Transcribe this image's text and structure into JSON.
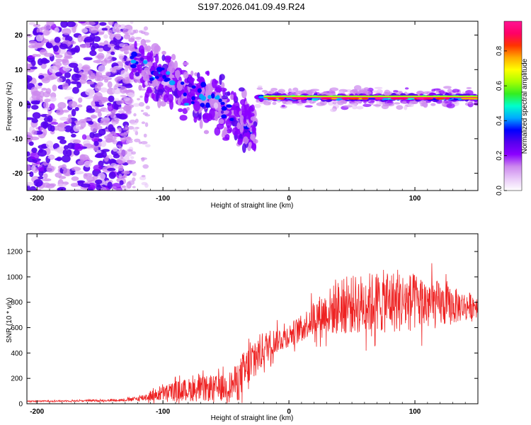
{
  "title": "S197.2026.041.09.49.R24",
  "chart_data": [
    {
      "type": "heatmap",
      "name": "spectrogram",
      "xlabel": "Height of straight line (km)",
      "ylabel": "Frequency (Hz)",
      "xlim": [
        -208,
        150
      ],
      "ylim": [
        -25,
        24
      ],
      "xticks": [
        -200,
        -100,
        0,
        100
      ],
      "yticks": [
        -20,
        -10,
        0,
        10,
        20
      ],
      "colorbar": {
        "label": "Normalized spectral amplitude",
        "range": [
          0,
          0.97
        ],
        "ticks": [
          "0.0",
          "0.2",
          "0.4",
          "0.6",
          "0.8"
        ],
        "tick_values": [
          0,
          0.2,
          0.4,
          0.6,
          0.8
        ],
        "colors": [
          "#ffffff",
          "#e8c8f8",
          "#cc88ee",
          "#8b00ff",
          "#5500ee",
          "#0000ff",
          "#00aaff",
          "#00ffcc",
          "#33ee22",
          "#aaff00",
          "#ffff00",
          "#ffaa00",
          "#ff3300",
          "#ff0066",
          "#ff1493"
        ]
      },
      "features": [
        {
          "name": "noise-region",
          "x_range": [
            -208,
            -125
          ],
          "freq_range": [
            -25,
            24
          ],
          "amplitude": 0.05
        },
        {
          "name": "descending-track",
          "x_start": -125,
          "x_end": -28,
          "freq_start": 12,
          "freq_end": -6,
          "amplitude": 0.25
        },
        {
          "name": "steady-carrier",
          "x_start": -25,
          "x_end": 150,
          "freq_start": 1.8,
          "freq_end": 2.0,
          "amplitude": 0.95
        }
      ]
    },
    {
      "type": "line",
      "name": "snr",
      "xlabel": "Height of straight line (km)",
      "ylabel": "SNR (10 * v/v)",
      "xlim": [
        -208,
        150
      ],
      "ylim": [
        0,
        1340
      ],
      "xticks": [
        -200,
        -100,
        0,
        100
      ],
      "yticks": [
        0,
        200,
        400,
        600,
        800,
        1000,
        1200
      ],
      "series": [
        {
          "name": "SNR",
          "color": "#ee2222",
          "x": [
            -208,
            -180,
            -150,
            -130,
            -120,
            -110,
            -100,
            -90,
            -80,
            -70,
            -60,
            -50,
            -45,
            -40,
            -35,
            -30,
            -25,
            -20,
            -15,
            -10,
            -5,
            0,
            5,
            10,
            15,
            20,
            25,
            30,
            40,
            50,
            60,
            70,
            80,
            90,
            100,
            110,
            120,
            130,
            140,
            150
          ],
          "values": [
            20,
            22,
            25,
            30,
            40,
            60,
            80,
            100,
            110,
            115,
            120,
            130,
            150,
            180,
            250,
            300,
            380,
            430,
            470,
            500,
            520,
            540,
            570,
            600,
            640,
            680,
            700,
            720,
            760,
            780,
            790,
            800,
            810,
            800,
            800,
            790,
            780,
            770,
            770,
            780
          ],
          "spread": [
            5,
            6,
            8,
            10,
            20,
            40,
            60,
            80,
            90,
            100,
            100,
            110,
            120,
            160,
            180,
            200,
            160,
            140,
            120,
            100,
            100,
            90,
            100,
            100,
            120,
            150,
            160,
            180,
            220,
            230,
            240,
            250,
            250,
            240,
            230,
            220,
            180,
            150,
            110,
            100
          ]
        }
      ]
    }
  ]
}
